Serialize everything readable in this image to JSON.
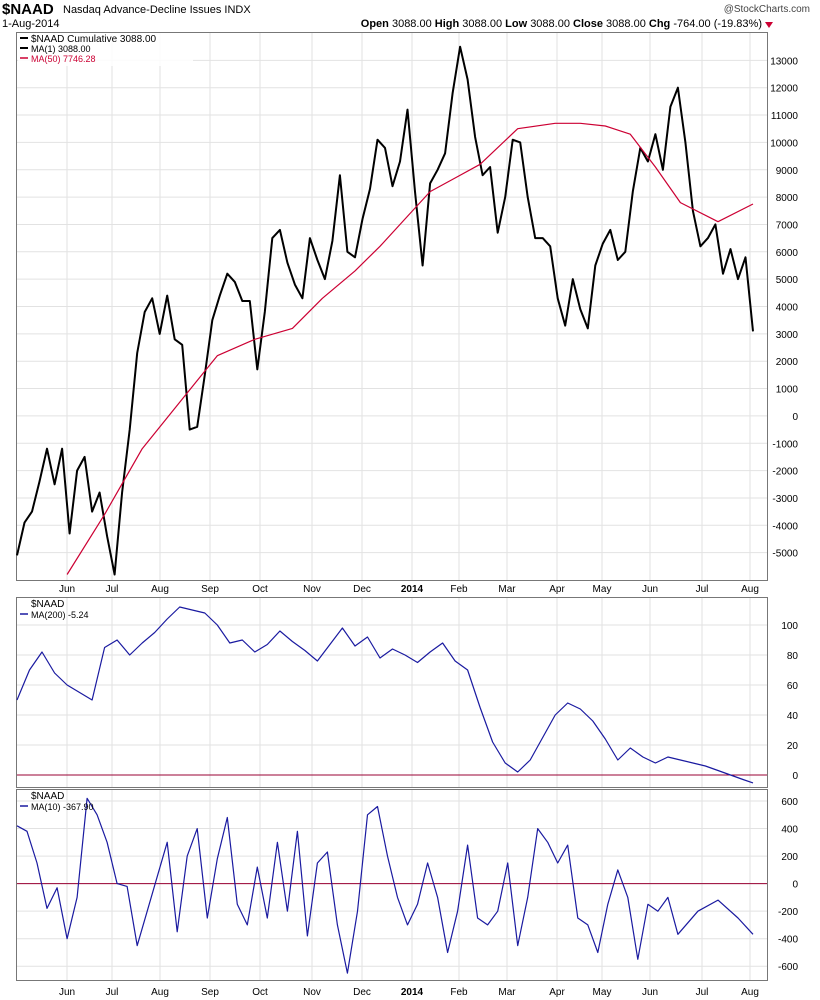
{
  "header": {
    "symbol": "$NAAD",
    "description": "Nasdaq Advance-Decline Issues INDX",
    "date": "1-Aug-2014",
    "watermark": "@StockCharts.com",
    "open_label": "Open",
    "open": "3088.00",
    "high_label": "High",
    "high": "3088.00",
    "low_label": "Low",
    "low": "3088.00",
    "close_label": "Close",
    "close": "3088.00",
    "chg_label": "Chg",
    "chg": "-764.00 (-19.83%)",
    "down_arrow_icon": "down-triangle-icon"
  },
  "colors": {
    "price": "#000000",
    "ma50": "#cc0033",
    "indicator": "#1a1aa0",
    "zero_line": "#990033",
    "grid": "#e2e2e2"
  },
  "x_labels": [
    "Jun",
    "Jul",
    "Aug",
    "Sep",
    "Oct",
    "Nov",
    "Dec",
    "2014",
    "Feb",
    "Mar",
    "Apr",
    "May",
    "Jun",
    "Jul",
    "Aug"
  ],
  "chart_data": [
    {
      "type": "line",
      "legend": [
        "$NAAD Cumulative 3088.00",
        "MA(1) 3088.00",
        "MA(50) 7746.28"
      ],
      "ylim": [
        -6000,
        14000
      ],
      "yticks": [
        13000,
        12000,
        11000,
        10000,
        9000,
        8000,
        7000,
        6000,
        5000,
        4000,
        3000,
        2000,
        1000,
        0,
        -1000,
        -2000,
        -3000,
        -4000,
        -5000
      ],
      "series": [
        {
          "name": "MA(1)",
          "x": [
            0,
            3,
            6,
            9,
            12,
            15,
            18,
            21,
            24,
            27,
            30,
            33,
            36,
            39,
            42,
            45,
            48,
            51,
            54,
            57,
            60,
            63,
            66,
            69,
            72,
            75,
            78,
            81,
            84,
            87,
            90,
            93,
            96,
            99,
            102,
            105,
            108,
            111,
            114,
            117,
            120,
            123,
            126,
            129,
            132,
            135,
            138,
            141,
            144,
            147,
            150,
            153,
            156,
            159,
            162,
            165,
            168,
            171,
            174,
            177,
            180,
            183,
            186,
            189,
            192,
            195,
            198,
            201,
            204,
            207,
            210,
            213,
            216,
            219,
            222,
            225,
            228,
            231,
            234,
            237,
            240,
            243,
            246,
            249,
            252,
            255,
            258,
            261,
            264,
            267,
            270,
            273,
            276,
            279,
            282,
            285,
            288,
            291,
            294
          ],
          "values": [
            -5100,
            -3900,
            -3500,
            -2400,
            -1200,
            -2500,
            -1200,
            -4300,
            -2000,
            -1500,
            -3500,
            -2800,
            -4400,
            -5800,
            -2800,
            -500,
            2300,
            3800,
            4300,
            3000,
            4400,
            2800,
            2600,
            -500,
            -400,
            1500,
            3500,
            4400,
            5200,
            4900,
            4200,
            4200,
            1700,
            3800,
            6500,
            6800,
            5600,
            4800,
            4300,
            6500,
            5700,
            5000,
            6400,
            8800,
            6000,
            5800,
            7200,
            8300,
            10100,
            9800,
            8400,
            9300,
            11200,
            8200,
            5500,
            8500,
            9000,
            9600,
            11800,
            13500,
            12300,
            10200,
            8800,
            9100,
            6700,
            8000,
            10100,
            10000,
            8000,
            6500,
            6500,
            6200,
            4300,
            3300,
            5000,
            3900,
            3200,
            5500,
            6300,
            6800,
            5700,
            6000,
            8200,
            9800,
            9300,
            10300,
            9000,
            11300,
            12000,
            10000,
            7500,
            6200,
            6500,
            7000,
            5200,
            6100,
            5000,
            5800,
            3088
          ]
        },
        {
          "name": "MA(50)",
          "x": [
            20,
            35,
            50,
            65,
            80,
            95,
            110,
            122,
            135,
            145,
            155,
            165,
            175,
            185,
            200,
            215,
            225,
            235,
            245,
            255,
            265,
            280,
            294
          ],
          "values": [
            -5800,
            -3600,
            -1200,
            500,
            2200,
            2800,
            3200,
            4300,
            5300,
            6200,
            7200,
            8200,
            8700,
            9200,
            10500,
            10700,
            10700,
            10600,
            10300,
            9100,
            7800,
            7100,
            7746
          ]
        }
      ]
    },
    {
      "type": "line",
      "legend": [
        "$NAAD",
        "MA(200) -5.24"
      ],
      "ylim": [
        -8,
        118
      ],
      "yticks": [
        100,
        80,
        60,
        40,
        20,
        0
      ],
      "series": [
        {
          "name": "MA(200)",
          "x": [
            0,
            5,
            10,
            15,
            20,
            25,
            30,
            35,
            40,
            45,
            50,
            55,
            60,
            65,
            70,
            75,
            80,
            85,
            90,
            95,
            100,
            105,
            110,
            115,
            120,
            125,
            130,
            135,
            140,
            145,
            150,
            155,
            160,
            165,
            170,
            175,
            180,
            185,
            190,
            195,
            200,
            205,
            210,
            215,
            220,
            225,
            230,
            235,
            240,
            245,
            250,
            255,
            260,
            265,
            270,
            275,
            280,
            285,
            290,
            294
          ],
          "values": [
            50,
            70,
            82,
            68,
            60,
            55,
            50,
            85,
            90,
            80,
            88,
            95,
            104,
            112,
            110,
            108,
            100,
            88,
            90,
            82,
            87,
            96,
            89,
            83,
            76,
            87,
            98,
            86,
            92,
            78,
            84,
            80,
            75,
            82,
            88,
            76,
            70,
            45,
            22,
            8,
            2,
            10,
            25,
            40,
            48,
            44,
            36,
            24,
            10,
            18,
            12,
            8,
            12,
            10,
            8,
            6,
            3,
            0,
            -3,
            -5.24
          ]
        }
      ]
    },
    {
      "type": "line",
      "legend": [
        "$NAAD",
        "MA(10) -367.90"
      ],
      "ylim": [
        -700,
        680
      ],
      "yticks": [
        600,
        400,
        200,
        0,
        -200,
        -400,
        -600
      ],
      "series": [
        {
          "name": "MA(10)",
          "x": [
            0,
            4,
            8,
            12,
            16,
            20,
            24,
            28,
            32,
            36,
            40,
            44,
            48,
            52,
            56,
            60,
            64,
            68,
            72,
            76,
            80,
            84,
            88,
            92,
            96,
            100,
            104,
            108,
            112,
            116,
            120,
            124,
            128,
            132,
            136,
            140,
            144,
            148,
            152,
            156,
            160,
            164,
            168,
            172,
            176,
            180,
            184,
            188,
            192,
            196,
            200,
            204,
            208,
            212,
            216,
            220,
            224,
            228,
            232,
            236,
            240,
            244,
            248,
            252,
            256,
            260,
            264,
            272,
            280,
            288,
            294
          ],
          "values": [
            420,
            380,
            150,
            -180,
            -30,
            -400,
            -100,
            620,
            500,
            300,
            0,
            -20,
            -450,
            -200,
            50,
            300,
            -350,
            200,
            400,
            -250,
            180,
            480,
            -150,
            -300,
            120,
            -250,
            300,
            -200,
            380,
            -380,
            150,
            230,
            -300,
            -650,
            -200,
            500,
            560,
            200,
            -100,
            -300,
            -150,
            150,
            -100,
            -500,
            -200,
            280,
            -250,
            -300,
            -200,
            150,
            -450,
            -100,
            400,
            300,
            150,
            280,
            -250,
            -300,
            -500,
            -150,
            100,
            -100,
            -550,
            -150,
            -200,
            -100,
            -368,
            -200,
            -120,
            -250,
            -367.9
          ]
        }
      ]
    }
  ]
}
